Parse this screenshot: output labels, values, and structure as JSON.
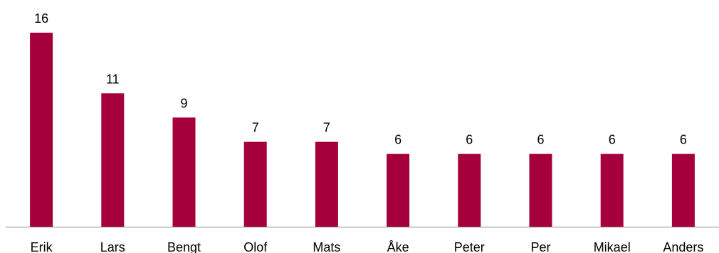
{
  "chart_data": {
    "type": "bar",
    "title": "",
    "xlabel": "",
    "ylabel": "",
    "categories": [
      "Erik",
      "Lars",
      "Bengt",
      "Olof",
      "Mats",
      "Åke",
      "Peter",
      "Per",
      "Mikael",
      "Anders"
    ],
    "values": [
      16,
      11,
      9,
      7,
      7,
      6,
      6,
      6,
      6,
      6
    ],
    "ylim": [
      0,
      16
    ],
    "grid": false,
    "legend": "none",
    "colors": {
      "bar": "#A6003C",
      "axis": "#888888",
      "text": "#000000"
    }
  }
}
